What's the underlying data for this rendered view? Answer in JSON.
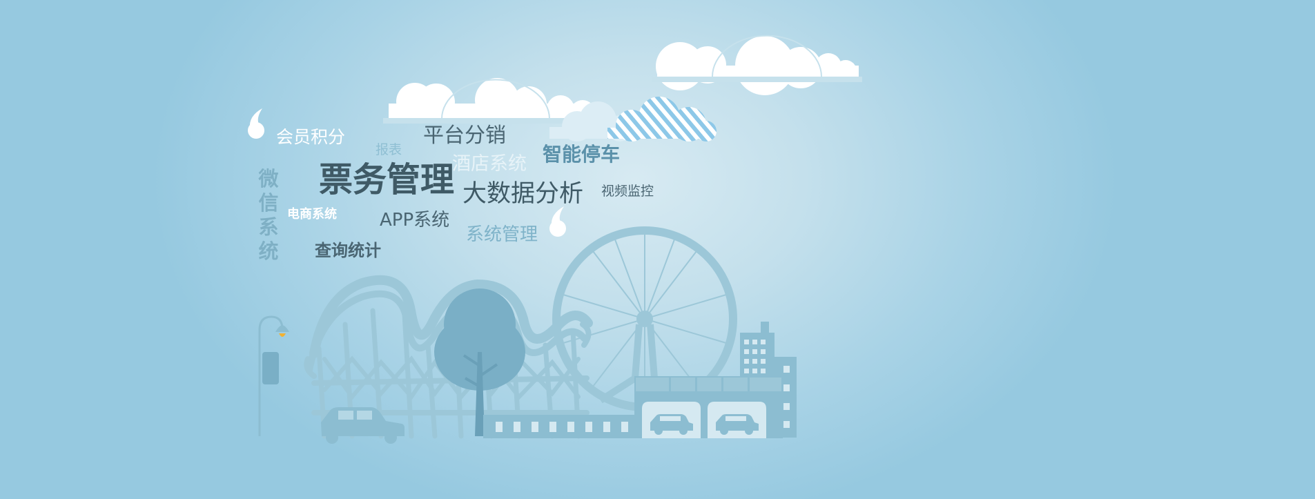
{
  "colors": {
    "background": "#a9d3e6",
    "illustration_main": "#8cbdd1",
    "illustration_dark": "#7aafc6",
    "cloud_white": "#ffffff",
    "cloud_stripe": "#8dc8e8",
    "lamp_light": "#f2b233",
    "text_dark": "#3f5a66",
    "text_light": "#ffffff"
  },
  "words": {
    "member_points": "会员积分",
    "report": "报表",
    "platform_distribution": "平台分销",
    "hotel_system": "酒店系统",
    "smart_parking": "智能停车",
    "ticket_management": "票务管理",
    "big_data_analysis": "大数据分析",
    "video_monitoring": "视频监控",
    "wechat_system": "微信系统",
    "ecommerce_system": "电商系统",
    "app_system": "APP系统",
    "system_management": "系统管理",
    "query_statistics": "查询统计"
  },
  "icons": {
    "quote_open": "quote-open-icon",
    "quote_close": "quote-close-icon"
  }
}
